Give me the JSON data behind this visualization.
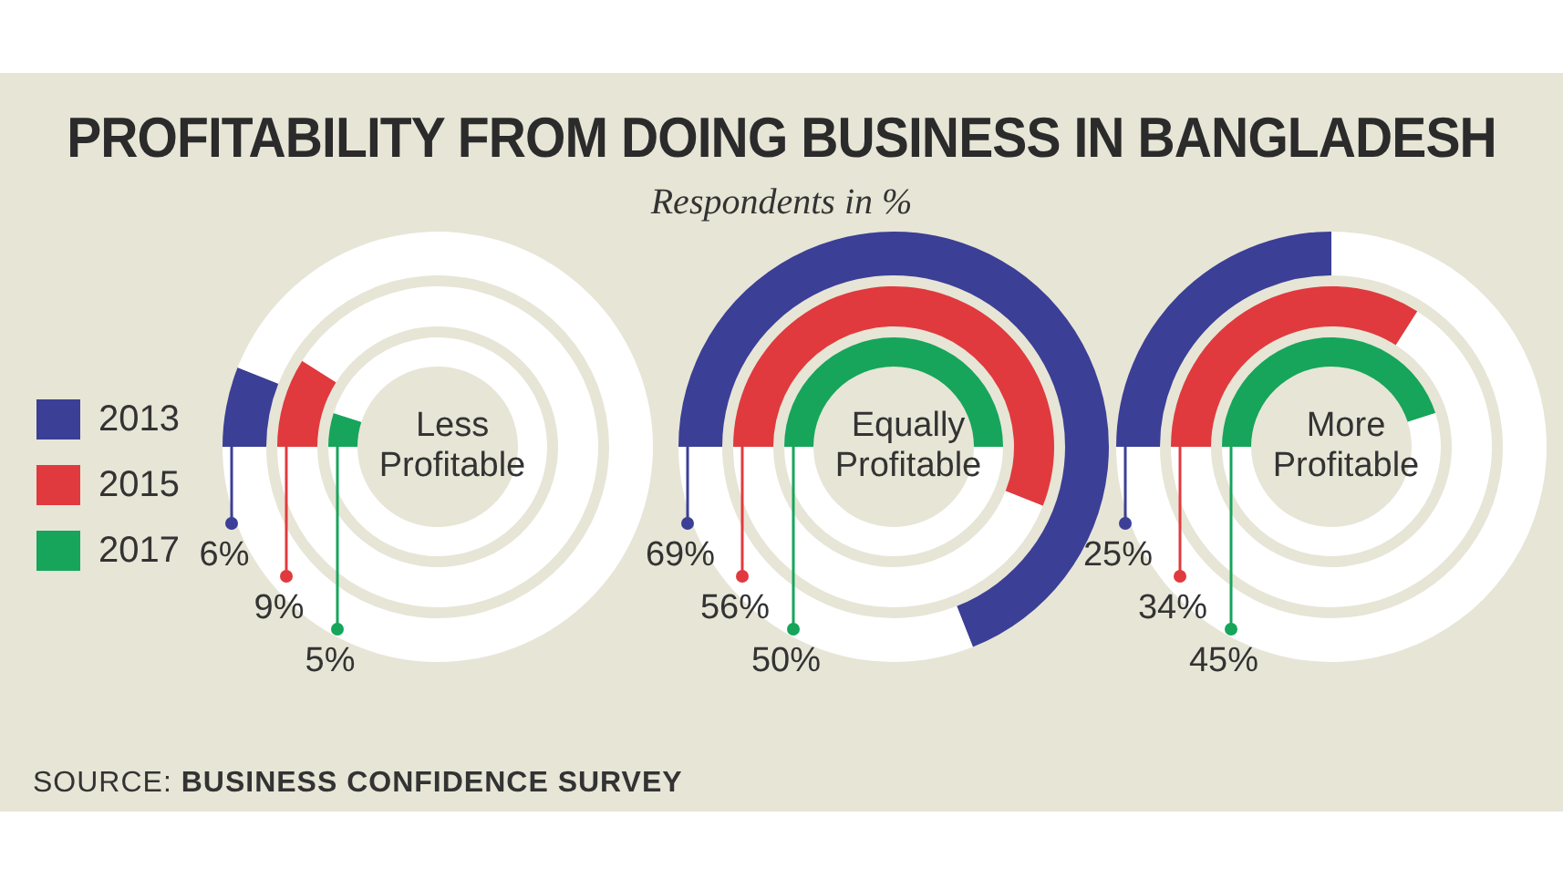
{
  "chart_data": {
    "type": "other",
    "title": "PROFITABILITY FROM DOING BUSINESS IN BANGLADESH",
    "subtitle": "Respondents in %",
    "categories": [
      "Less Profitable",
      "Equally Profitable",
      "More Profitable"
    ],
    "series": [
      {
        "name": "2013",
        "color": "#3b3f96",
        "values": [
          6,
          69,
          25
        ],
        "value_labels": [
          "6%",
          "69%",
          "25%"
        ]
      },
      {
        "name": "2015",
        "color": "#e03a3e",
        "values": [
          9,
          56,
          34
        ],
        "value_labels": [
          "9%",
          "56%",
          "34%"
        ]
      },
      {
        "name": "2017",
        "color": "#16a55b",
        "values": [
          5,
          50,
          45
        ],
        "value_labels": [
          "5%",
          "50%",
          "45%"
        ]
      }
    ],
    "legend": "left",
    "annotations": [
      "SOURCE: BUSINESS CONFIDENCE SURVEY"
    ]
  }
}
